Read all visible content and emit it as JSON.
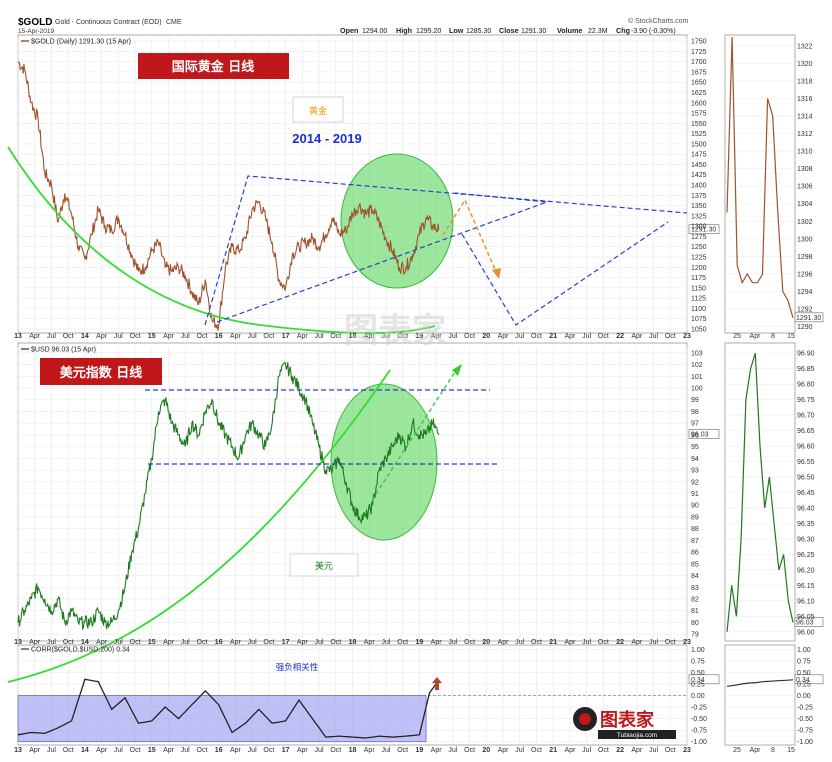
{
  "header": {
    "symbol": "$GOLD",
    "description": "Gold - Continuous Contract (EOD)",
    "exchange": "CME",
    "date": "15-Apr-2019",
    "open_label": "Open",
    "open": "1294.00",
    "high_label": "High",
    "high": "1295.20",
    "low_label": "Low",
    "low": "1285.30",
    "close_label": "Close",
    "close": "1291.30",
    "volume_label": "Volume",
    "volume": "22.3M",
    "chg_label": "Chg",
    "chg": "-3.90 (-0.30%)",
    "source": "© StockCharts.com"
  },
  "annotations": {
    "gold_title": "国际黄金 日线",
    "gold_box": "黄金",
    "years": "2014 - 2019",
    "usd_title": "美元指数 日线",
    "usd_box": "美元",
    "corr_label": "强负相关性",
    "watermark": "图表家",
    "logo_text": "图表家",
    "logo_sub": "Tubiaojia.com"
  },
  "colors": {
    "gold_line": "#a0522d",
    "usd_line": "#1e7a1e",
    "green_curve": "#33dd33",
    "blue_dash": "#2a3fd0",
    "orange_dash": "#e8902a",
    "green_ellipse": "#4cd24c",
    "corr_band": "#8c8cf0",
    "red_box": "#c0171b"
  },
  "chart_data": [
    {
      "type": "line",
      "legend": "$GOLD (Daily) 1291.30 (15 Apr)",
      "y_ticks": [
        1050,
        1075,
        1100,
        1125,
        1150,
        1175,
        1200,
        1225,
        1250,
        1275,
        1300,
        1325,
        1350,
        1375,
        1400,
        1425,
        1450,
        1475,
        1500,
        1525,
        1550,
        1575,
        1600,
        1625,
        1650,
        1675,
        1700,
        1725,
        1750
      ],
      "ylim": [
        1045,
        1760
      ],
      "last_value": "1291.30",
      "x": [
        2013.0,
        2013.1,
        2013.2,
        2013.3,
        2013.4,
        2013.5,
        2013.6,
        2013.7,
        2013.8,
        2013.9,
        2014.0,
        2014.1,
        2014.2,
        2014.3,
        2014.4,
        2014.5,
        2014.6,
        2014.7,
        2014.8,
        2014.9,
        2015.0,
        2015.1,
        2015.2,
        2015.3,
        2015.4,
        2015.5,
        2015.6,
        2015.7,
        2015.8,
        2015.9,
        2016.0,
        2016.1,
        2016.2,
        2016.3,
        2016.4,
        2016.5,
        2016.6,
        2016.7,
        2016.8,
        2016.9,
        2017.0,
        2017.1,
        2017.2,
        2017.3,
        2017.4,
        2017.5,
        2017.6,
        2017.7,
        2017.8,
        2017.9,
        2018.0,
        2018.1,
        2018.2,
        2018.3,
        2018.4,
        2018.5,
        2018.6,
        2018.7,
        2018.8,
        2018.9,
        2019.0,
        2019.1,
        2019.2,
        2019.29
      ],
      "values": [
        1700,
        1680,
        1600,
        1560,
        1430,
        1400,
        1310,
        1380,
        1330,
        1250,
        1220,
        1280,
        1340,
        1300,
        1290,
        1320,
        1280,
        1230,
        1190,
        1200,
        1240,
        1260,
        1200,
        1190,
        1200,
        1180,
        1140,
        1110,
        1170,
        1070,
        1060,
        1200,
        1250,
        1240,
        1270,
        1340,
        1360,
        1320,
        1260,
        1170,
        1150,
        1230,
        1250,
        1260,
        1270,
        1250,
        1280,
        1320,
        1280,
        1290,
        1330,
        1350,
        1330,
        1340,
        1310,
        1270,
        1240,
        1200,
        1200,
        1230,
        1280,
        1320,
        1300,
        1291
      ]
    },
    {
      "type": "line",
      "legend": "$USD 96.03 (15 Apr)",
      "y_ticks": [
        79,
        80,
        81,
        82,
        83,
        84,
        85,
        86,
        87,
        88,
        89,
        90,
        91,
        92,
        93,
        94,
        95,
        96,
        97,
        98,
        99,
        100,
        101,
        102,
        103
      ],
      "ylim": [
        78.5,
        103.5
      ],
      "last_value": "96.03",
      "x": [
        2013.0,
        2013.1,
        2013.2,
        2013.3,
        2013.4,
        2013.5,
        2013.6,
        2013.7,
        2013.8,
        2013.9,
        2014.0,
        2014.1,
        2014.2,
        2014.3,
        2014.4,
        2014.5,
        2014.6,
        2014.7,
        2014.8,
        2014.9,
        2015.0,
        2015.1,
        2015.2,
        2015.3,
        2015.4,
        2015.5,
        2015.6,
        2015.7,
        2015.8,
        2015.9,
        2016.0,
        2016.1,
        2016.2,
        2016.3,
        2016.4,
        2016.5,
        2016.6,
        2016.7,
        2016.8,
        2016.9,
        2017.0,
        2017.1,
        2017.2,
        2017.3,
        2017.4,
        2017.5,
        2017.6,
        2017.7,
        2017.8,
        2017.9,
        2018.0,
        2018.1,
        2018.2,
        2018.3,
        2018.4,
        2018.5,
        2018.6,
        2018.7,
        2018.8,
        2018.9,
        2019.0,
        2019.1,
        2019.2,
        2019.29
      ],
      "values": [
        80,
        81,
        82,
        83,
        82,
        81,
        82,
        80,
        81,
        80,
        80,
        80,
        81,
        80,
        80,
        81,
        83,
        86,
        88,
        91,
        94,
        98,
        99,
        97,
        96,
        95,
        97,
        96,
        98,
        99,
        97,
        96,
        95,
        94,
        96,
        97,
        96,
        95,
        97,
        101,
        102,
        101,
        100,
        99,
        97,
        95,
        93,
        93,
        94,
        92,
        90,
        89,
        89,
        90,
        93,
        94,
        95,
        96,
        95,
        97,
        96,
        96,
        97,
        96
      ]
    },
    {
      "type": "line",
      "legend": "CORR($GOLD,$USD,200) 0.34",
      "y_ticks": [
        -1.0,
        -0.75,
        -0.5,
        -0.25,
        0.0,
        0.25,
        0.5,
        0.75,
        1.0
      ],
      "ylim": [
        -1.05,
        1.05
      ],
      "last_value": "0.34",
      "x": [
        2013.0,
        2013.2,
        2013.4,
        2013.6,
        2013.8,
        2014.0,
        2014.2,
        2014.4,
        2014.6,
        2014.8,
        2015.0,
        2015.2,
        2015.4,
        2015.6,
        2015.8,
        2016.0,
        2016.2,
        2016.4,
        2016.6,
        2016.8,
        2017.0,
        2017.2,
        2017.4,
        2017.6,
        2017.8,
        2018.0,
        2018.2,
        2018.4,
        2018.6,
        2018.8,
        2019.0,
        2019.15,
        2019.29
      ],
      "values": [
        -0.85,
        -0.8,
        -0.82,
        -0.7,
        -0.55,
        0.35,
        0.3,
        -0.3,
        -0.05,
        -0.6,
        -0.55,
        -0.25,
        -0.5,
        -0.2,
        0.1,
        -0.2,
        -0.8,
        -0.6,
        -0.3,
        -0.6,
        -0.55,
        -0.1,
        -0.5,
        -0.9,
        -0.88,
        -0.9,
        -0.92,
        -0.88,
        -0.9,
        -0.88,
        -0.85,
        0.05,
        0.34
      ]
    }
  ],
  "x_axis": {
    "labels": [
      "13",
      "Apr",
      "Jul",
      "Oct",
      "14",
      "Apr",
      "Jul",
      "Oct",
      "15",
      "Apr",
      "Jul",
      "Oct",
      "16",
      "Apr",
      "Jul",
      "Oct",
      "17",
      "Apr",
      "Jul",
      "Oct",
      "18",
      "Apr",
      "Jul",
      "Oct",
      "19",
      "Apr",
      "Jul",
      "Oct",
      "20",
      "Apr",
      "Jul",
      "Oct",
      "21",
      "Apr",
      "Jul",
      "Oct",
      "22",
      "Apr",
      "Jul",
      "Oct",
      "23"
    ],
    "xlim": [
      2013.0,
      2023.0
    ]
  },
  "inset": {
    "gold_ticks": [
      1290,
      1292,
      1294,
      1296,
      1298,
      1300,
      1302,
      1304,
      1306,
      1308,
      1310,
      1312,
      1314,
      1316,
      1318,
      1320,
      1322
    ],
    "gold_ylim": [
      1289.5,
      1323
    ],
    "gold_values": [
      1303,
      1323,
      1297,
      1295,
      1296,
      1295,
      1295,
      1296,
      1316,
      1314,
      1303,
      1294,
      1293,
      1291
    ],
    "gold_last": "1291.30",
    "usd_ticks": [
      96.0,
      96.05,
      96.1,
      96.15,
      96.2,
      96.25,
      96.3,
      96.35,
      96.4,
      96.45,
      96.5,
      96.55,
      96.6,
      96.65,
      96.7,
      96.75,
      96.8,
      96.85,
      96.9
    ],
    "usd_ylim": [
      95.98,
      96.92
    ],
    "usd_values": [
      96.0,
      96.15,
      96.05,
      96.3,
      96.75,
      96.85,
      96.9,
      96.6,
      96.4,
      96.5,
      96.35,
      96.2,
      96.25,
      96.1,
      96.03
    ],
    "usd_last": "96.03",
    "corr_ticks": [
      1.0,
      0.75,
      0.5,
      0.25,
      0.0,
      -0.25,
      -0.5,
      -0.75,
      -1.0
    ],
    "corr_values": [
      0.2,
      0.22,
      0.25,
      0.27,
      0.28,
      0.3,
      0.31,
      0.32,
      0.33,
      0.34
    ],
    "corr_last": "0.34",
    "x_labels": [
      "25",
      "Apr",
      "8",
      "15"
    ]
  }
}
